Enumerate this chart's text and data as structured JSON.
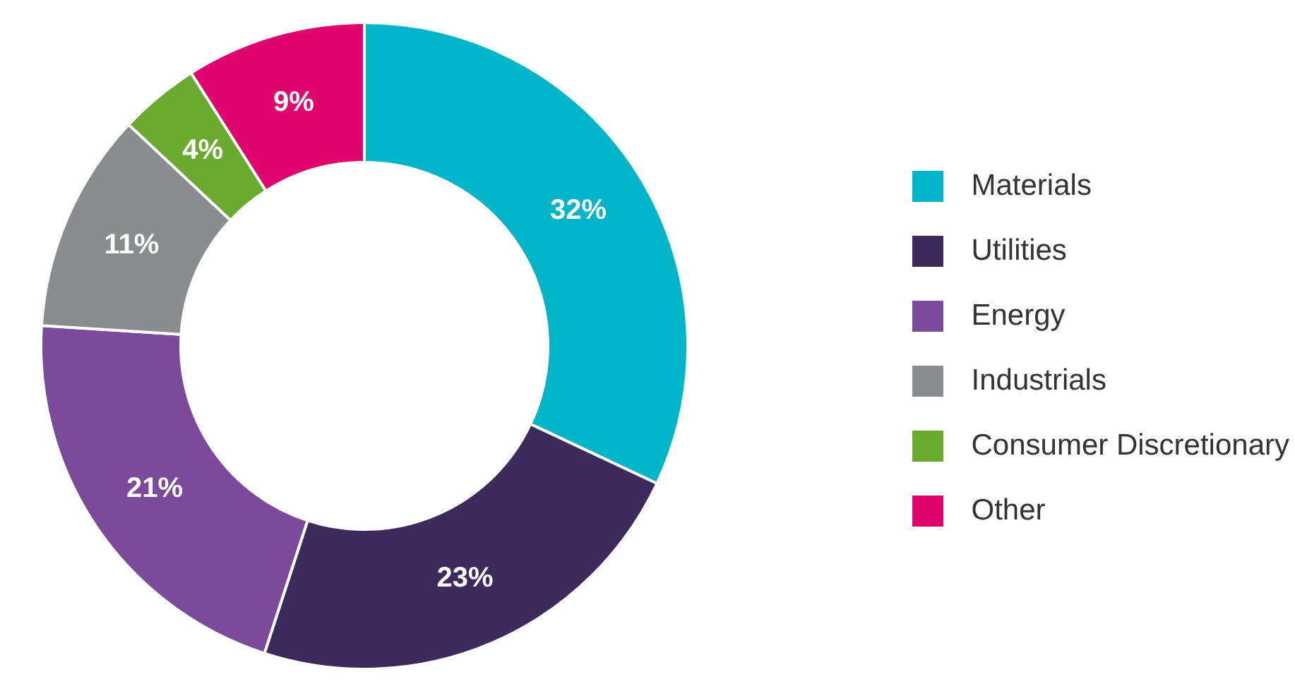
{
  "chart_data": {
    "type": "donut",
    "categories": [
      "Materials",
      "Utilities",
      "Energy",
      "Industrials",
      "Consumer Discretionary",
      "Other"
    ],
    "values": [
      32,
      23,
      21,
      11,
      4,
      9
    ],
    "colors": [
      "#00b5c8",
      "#3b2a5a",
      "#7b4a9b",
      "#8a8c8e",
      "#6aaa2e",
      "#e0046f"
    ],
    "value_labels": [
      "32%",
      "23%",
      "21%",
      "11%",
      "4%",
      "9%"
    ],
    "legend": "right"
  }
}
